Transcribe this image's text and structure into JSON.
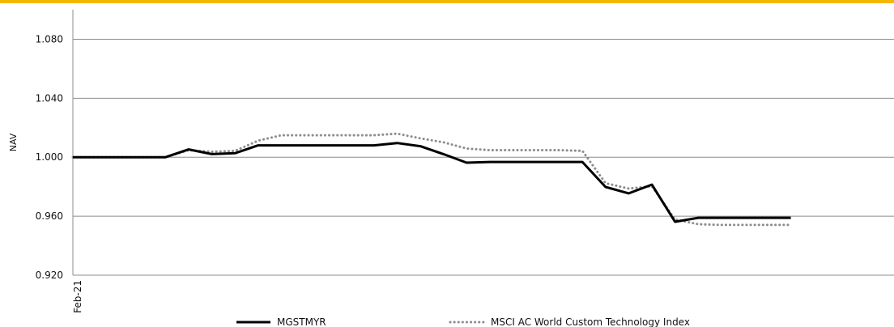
{
  "colors": {
    "accent_bar": "#f5b800",
    "grid": "#8c8c8c",
    "axis": "#8c8c8c",
    "series_primary": "#000000",
    "series_benchmark": "#8c8c8c"
  },
  "chart_data": {
    "type": "line",
    "ylabel": "NAV",
    "ylim": [
      0.92,
      1.1
    ],
    "yticks": [
      "0.920",
      "0.960",
      "1.000",
      "1.040",
      "1.080"
    ],
    "ytick_values": [
      0.92,
      0.96,
      1.0,
      1.04,
      1.08
    ],
    "x_tick_labels": [
      "Feb-21"
    ],
    "grid": "horizontal",
    "legend_position": "bottom",
    "series": [
      {
        "name": "MGSTMYR",
        "style": "solid",
        "values": [
          1.0,
          1.0,
          1.0,
          1.0,
          1.0,
          1.0053,
          1.0021,
          1.0027,
          1.008,
          1.008,
          1.008,
          1.008,
          1.008,
          1.008,
          1.0096,
          1.0075,
          1.0021,
          0.9963,
          0.9968,
          0.9968,
          0.9968,
          0.9968,
          0.9968,
          0.9798,
          0.9755,
          0.9814,
          0.9562,
          0.9589,
          0.9589,
          0.9589,
          0.9589,
          0.9589
        ]
      },
      {
        "name": "MSCI AC World Custom Technology Index",
        "style": "dotted",
        "values": [
          1.0,
          1.0,
          1.0,
          1.0,
          1.0,
          1.0048,
          1.0037,
          1.0043,
          1.0112,
          1.0149,
          1.0149,
          1.0149,
          1.0149,
          1.0149,
          1.016,
          1.0128,
          1.0101,
          1.0059,
          1.0048,
          1.0048,
          1.0048,
          1.0048,
          1.0043,
          0.9824,
          0.9787,
          0.9803,
          0.9578,
          0.9546,
          0.9541,
          0.9541,
          0.9541,
          0.9541
        ]
      }
    ]
  }
}
